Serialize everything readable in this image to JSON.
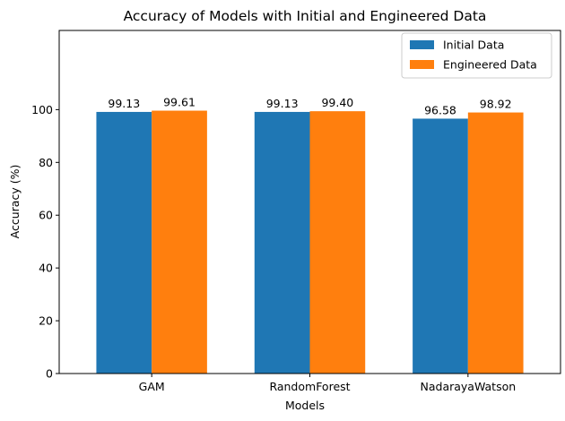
{
  "chart_data": {
    "type": "bar",
    "title": "Accuracy of Models with Initial and Engineered Data",
    "xlabel": "Models",
    "ylabel": "Accuracy (%)",
    "categories": [
      "GAM",
      "RandomForest",
      "NadarayaWatson"
    ],
    "series": [
      {
        "name": "Initial Data",
        "values": [
          99.13,
          99.13,
          96.58
        ],
        "labels": [
          "99.13",
          "99.13",
          "96.58"
        ],
        "color": "#1f77b4"
      },
      {
        "name": "Engineered Data",
        "values": [
          99.61,
          99.4,
          98.92
        ],
        "labels": [
          "99.61",
          "99.40",
          "98.92"
        ],
        "color": "#ff7f0e"
      }
    ],
    "ylim": [
      0,
      130
    ],
    "yticks": [
      0,
      20,
      40,
      60,
      80,
      100
    ],
    "ytick_labels": [
      "0",
      "20",
      "40",
      "60",
      "80",
      "100"
    ],
    "grid": false,
    "legend_position": "top-right"
  }
}
